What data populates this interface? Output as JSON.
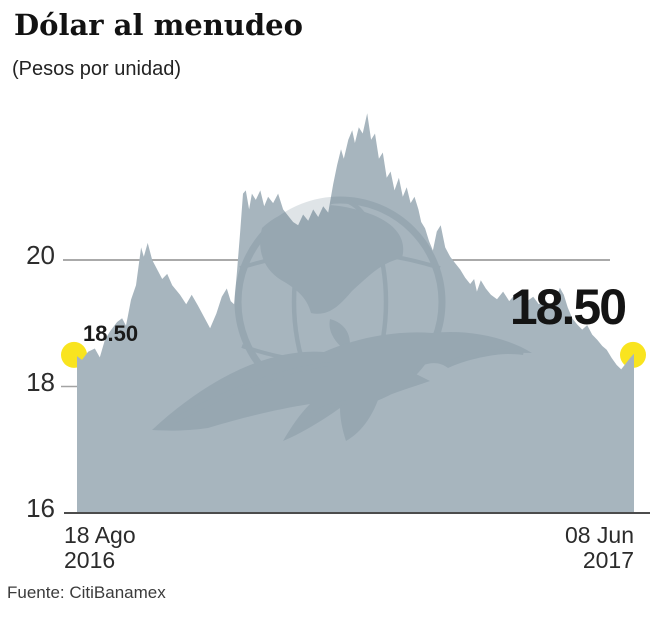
{
  "header": {
    "title": "Dólar al menudeo",
    "subtitle": "(Pesos por unidad)"
  },
  "source": {
    "label": "Fuente: CitiBanamex"
  },
  "watermark": {
    "name": "el-universal-eagle-globe-logo"
  },
  "chart_data": {
    "type": "area",
    "title": "Dólar al menudeo",
    "unit": "Pesos por unidad",
    "x_axis": {
      "start": [
        "18 Ago",
        "2016"
      ],
      "end": [
        "08 Jun",
        "2017"
      ]
    },
    "y_ticks": [
      16,
      18,
      20
    ],
    "ylim": [
      16,
      22.5
    ],
    "gridline_at": 20,
    "start_point": {
      "date": "18 Ago 2016",
      "value": 18.5,
      "label": "18.50"
    },
    "end_point": {
      "date": "08 Jun 2017",
      "value": 18.5,
      "label": "18.50"
    },
    "area_color": "#a7b5be",
    "marker_color": "#f9e41f",
    "gridline_color": "#8d8d8d",
    "axis_color": "#4c4c4c",
    "watermark_color": "#4a6577",
    "points": [
      [
        0.0,
        18.48
      ],
      [
        0.009,
        18.42
      ],
      [
        0.02,
        18.55
      ],
      [
        0.032,
        18.6
      ],
      [
        0.041,
        18.46
      ],
      [
        0.05,
        18.73
      ],
      [
        0.059,
        18.87
      ],
      [
        0.072,
        19.02
      ],
      [
        0.081,
        19.08
      ],
      [
        0.088,
        18.96
      ],
      [
        0.097,
        19.37
      ],
      [
        0.106,
        19.6
      ],
      [
        0.115,
        20.2
      ],
      [
        0.12,
        20.05
      ],
      [
        0.127,
        20.27
      ],
      [
        0.135,
        20.0
      ],
      [
        0.144,
        19.85
      ],
      [
        0.153,
        19.7
      ],
      [
        0.162,
        19.78
      ],
      [
        0.171,
        19.6
      ],
      [
        0.185,
        19.45
      ],
      [
        0.196,
        19.3
      ],
      [
        0.206,
        19.45
      ],
      [
        0.217,
        19.28
      ],
      [
        0.228,
        19.1
      ],
      [
        0.239,
        18.92
      ],
      [
        0.25,
        19.15
      ],
      [
        0.26,
        19.42
      ],
      [
        0.269,
        19.55
      ],
      [
        0.276,
        19.35
      ],
      [
        0.282,
        19.3
      ],
      [
        0.287,
        19.8
      ],
      [
        0.293,
        20.45
      ],
      [
        0.298,
        21.05
      ],
      [
        0.303,
        21.1
      ],
      [
        0.309,
        20.8
      ],
      [
        0.314,
        21.05
      ],
      [
        0.321,
        20.95
      ],
      [
        0.329,
        21.1
      ],
      [
        0.336,
        20.85
      ],
      [
        0.343,
        21.0
      ],
      [
        0.352,
        20.9
      ],
      [
        0.361,
        21.05
      ],
      [
        0.37,
        20.8
      ],
      [
        0.379,
        20.7
      ],
      [
        0.388,
        20.6
      ],
      [
        0.397,
        20.55
      ],
      [
        0.406,
        20.72
      ],
      [
        0.415,
        20.62
      ],
      [
        0.424,
        20.8
      ],
      [
        0.433,
        20.68
      ],
      [
        0.442,
        20.85
      ],
      [
        0.451,
        20.75
      ],
      [
        0.46,
        21.2
      ],
      [
        0.467,
        21.5
      ],
      [
        0.474,
        21.75
      ],
      [
        0.479,
        21.6
      ],
      [
        0.487,
        21.9
      ],
      [
        0.494,
        22.05
      ],
      [
        0.499,
        21.85
      ],
      [
        0.506,
        22.1
      ],
      [
        0.513,
        22.0
      ],
      [
        0.521,
        22.32
      ],
      [
        0.528,
        21.9
      ],
      [
        0.535,
        22.0
      ],
      [
        0.542,
        21.6
      ],
      [
        0.549,
        21.7
      ],
      [
        0.556,
        21.3
      ],
      [
        0.563,
        21.4
      ],
      [
        0.57,
        21.1
      ],
      [
        0.578,
        21.3
      ],
      [
        0.585,
        21.0
      ],
      [
        0.592,
        21.15
      ],
      [
        0.599,
        20.9
      ],
      [
        0.606,
        21.0
      ],
      [
        0.613,
        20.8
      ],
      [
        0.618,
        20.6
      ],
      [
        0.625,
        20.5
      ],
      [
        0.632,
        20.3
      ],
      [
        0.639,
        20.15
      ],
      [
        0.646,
        20.45
      ],
      [
        0.653,
        20.55
      ],
      [
        0.661,
        20.2
      ],
      [
        0.67,
        20.05
      ],
      [
        0.679,
        19.95
      ],
      [
        0.688,
        19.85
      ],
      [
        0.697,
        19.72
      ],
      [
        0.706,
        19.62
      ],
      [
        0.713,
        19.7
      ],
      [
        0.718,
        19.5
      ],
      [
        0.725,
        19.68
      ],
      [
        0.734,
        19.55
      ],
      [
        0.743,
        19.45
      ],
      [
        0.754,
        19.38
      ],
      [
        0.765,
        19.5
      ],
      [
        0.776,
        19.35
      ],
      [
        0.786,
        19.45
      ],
      [
        0.797,
        19.52
      ],
      [
        0.808,
        19.35
      ],
      [
        0.819,
        19.42
      ],
      [
        0.829,
        19.3
      ],
      [
        0.84,
        19.38
      ],
      [
        0.851,
        19.25
      ],
      [
        0.86,
        19.4
      ],
      [
        0.867,
        19.56
      ],
      [
        0.874,
        19.45
      ],
      [
        0.881,
        19.25
      ],
      [
        0.889,
        19.08
      ],
      [
        0.898,
        18.98
      ],
      [
        0.907,
        18.9
      ],
      [
        0.916,
        18.97
      ],
      [
        0.925,
        18.82
      ],
      [
        0.934,
        18.74
      ],
      [
        0.943,
        18.64
      ],
      [
        0.951,
        18.58
      ],
      [
        0.96,
        18.45
      ],
      [
        0.969,
        18.34
      ],
      [
        0.977,
        18.27
      ],
      [
        0.985,
        18.36
      ],
      [
        0.993,
        18.45
      ],
      [
        1.0,
        18.52
      ]
    ]
  }
}
